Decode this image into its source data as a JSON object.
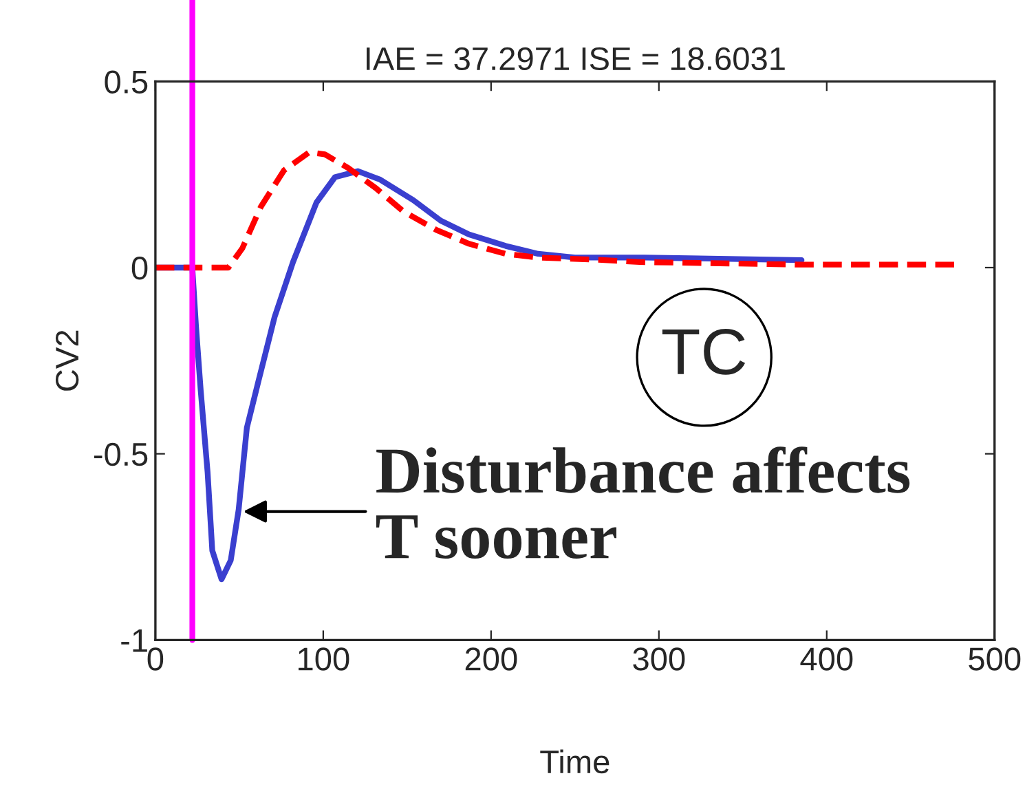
{
  "chart_data": {
    "type": "line",
    "title": "IAE = 37.2971 ISE = 18.6031",
    "xlabel": "Time",
    "ylabel": "CV2",
    "xlim": [
      0,
      500
    ],
    "ylim": [
      -1,
      0.5
    ],
    "xticks": [
      0,
      100,
      200,
      300,
      400,
      500
    ],
    "yticks": [
      -1,
      -0.5,
      0,
      0.5
    ],
    "grid": false,
    "legend": false,
    "series": [
      {
        "color": "#3a3fcf",
        "line_style": "solid",
        "x": [
          0,
          22,
          24.2,
          27,
          31.1,
          33.9,
          39.4,
          44.9,
          49.6,
          54.5,
          61.4,
          71,
          82,
          96,
          107,
          120.7,
          134,
          153.7,
          170,
          186.8,
          208.8,
          228,
          250,
          291.5,
          385
        ],
        "values": [
          0,
          0,
          -0.158,
          -0.33,
          -0.55,
          -0.76,
          -0.837,
          -0.786,
          -0.65,
          -0.43,
          -0.305,
          -0.133,
          0.015,
          0.175,
          0.243,
          0.259,
          0.236,
          0.181,
          0.126,
          0.089,
          0.058,
          0.037,
          0.027,
          0.027,
          0.02
        ]
      },
      {
        "color": "#ff0000",
        "line_style": "dashed",
        "x": [
          0,
          43.5,
          51.8,
          62.8,
          76.6,
          91.7,
          101,
          115,
          131.7,
          148,
          167.5,
          186.8,
          208.8,
          228,
          264,
          288.5,
          385,
          476
        ],
        "values": [
          0,
          0,
          0.052,
          0.163,
          0.261,
          0.31,
          0.304,
          0.267,
          0.212,
          0.15,
          0.101,
          0.064,
          0.037,
          0.027,
          0.021,
          0.015,
          0.008,
          0.008
        ]
      }
    ],
    "ref_lines": [
      {
        "axis": "x",
        "value": 22,
        "color": "#ff00ff"
      }
    ],
    "annotations": [
      {
        "text": "Disturbance affects\nT sooner",
        "x": 50,
        "y": -0.655
      },
      "TC"
    ]
  }
}
